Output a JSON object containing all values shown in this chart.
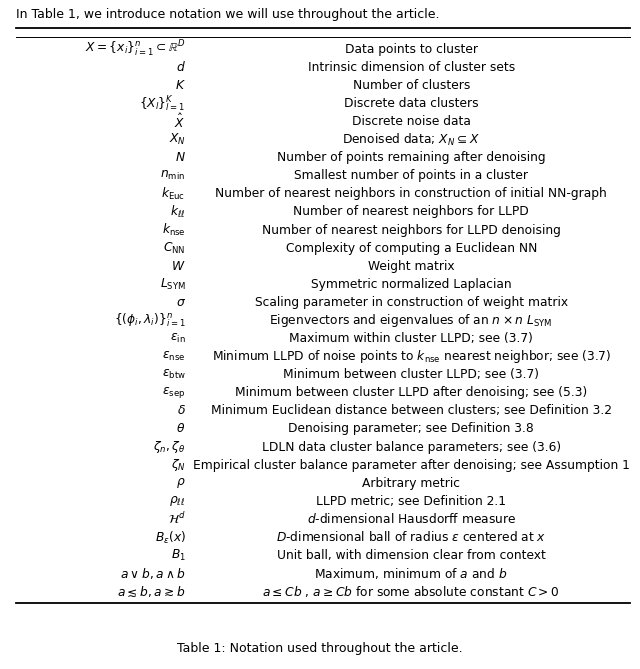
{
  "title": "Table 1: Notation used throughout the article.",
  "header_text": "In Table 1, we introduce notation we will use throughout the article.",
  "rows": [
    [
      "$X = \\{x_i\\}_{i=1}^n \\subset \\mathbb{R}^D$",
      "Data points to cluster"
    ],
    [
      "$d$",
      "Intrinsic dimension of cluster sets"
    ],
    [
      "$K$",
      "Number of clusters"
    ],
    [
      "$\\{X_l\\}_{l=1}^K$",
      "Discrete data clusters"
    ],
    [
      "$\\hat{X}$",
      "Discrete noise data"
    ],
    [
      "$X_N$",
      "Denoised data; $X_N \\subseteq X$"
    ],
    [
      "$N$",
      "Number of points remaining after denoising"
    ],
    [
      "$n_{\\min}$",
      "Smallest number of points in a cluster"
    ],
    [
      "$k_{\\mathrm{Euc}}$",
      "Number of nearest neighbors in construction of initial NN-graph"
    ],
    [
      "$k_{\\ell\\ell}$",
      "Number of nearest neighbors for LLPD"
    ],
    [
      "$k_{\\mathrm{nse}}$",
      "Number of nearest neighbors for LLPD denoising"
    ],
    [
      "$C_{\\mathrm{NN}}$",
      "Complexity of computing a Euclidean NN"
    ],
    [
      "$W$",
      "Weight matrix"
    ],
    [
      "$L_{\\mathrm{SYM}}$",
      "Symmetric normalized Laplacian"
    ],
    [
      "$\\sigma$",
      "Scaling parameter in construction of weight matrix"
    ],
    [
      "$\\{(\\phi_i, \\lambda_i)\\}_{i=1}^n$",
      "Eigenvectors and eigenvalues of an $n \\times n$ $L_{\\mathrm{SYM}}$"
    ],
    [
      "$\\epsilon_{\\mathrm{in}}$",
      "Maximum within cluster LLPD; see (3.7)"
    ],
    [
      "$\\epsilon_{\\mathrm{nse}}$",
      "Minimum LLPD of noise points to $k_{\\mathrm{nse}}$ nearest neighbor; see (3.7)"
    ],
    [
      "$\\epsilon_{\\mathrm{btw}}$",
      "Minimum between cluster LLPD; see (3.7)"
    ],
    [
      "$\\epsilon_{\\mathrm{sep}}$",
      "Minimum between cluster LLPD after denoising; see (5.3)"
    ],
    [
      "$\\delta$",
      "Minimum Euclidean distance between clusters; see Definition 3.2"
    ],
    [
      "$\\theta$",
      "Denoising parameter; see Definition 3.8"
    ],
    [
      "$\\zeta_n, \\zeta_\\theta$",
      "LDLN data cluster balance parameters; see (3.6)"
    ],
    [
      "$\\zeta_N$",
      "Empirical cluster balance parameter after denoising; see Assumption 1"
    ],
    [
      "$\\rho$",
      "Arbitrary metric"
    ],
    [
      "$\\rho_{\\ell\\ell}$",
      "LLPD metric; see Definition 2.1"
    ],
    [
      "$\\mathcal{H}^d$",
      "$d$-dimensional Hausdorff measure"
    ],
    [
      "$B_\\epsilon(x)$",
      "$D$-dimensional ball of radius $\\epsilon$ centered at $x$"
    ],
    [
      "$B_1$",
      "Unit ball, with dimension clear from context"
    ],
    [
      "$a \\vee b, a \\wedge b$",
      "Maximum, minimum of $a$ and $b$"
    ],
    [
      "$a \\lesssim b, a \\gtrsim b$",
      "$a \\leq Cb$ , $a \\geq Cb$ for some absolute constant $C > 0$"
    ]
  ],
  "col_split": 0.3,
  "background_color": "#ffffff",
  "text_color": "#000000",
  "font_size": 8.8,
  "header_font_size": 9.0,
  "title_font_size": 9.0,
  "fig_width": 6.4,
  "fig_height": 6.69,
  "dpi": 100
}
